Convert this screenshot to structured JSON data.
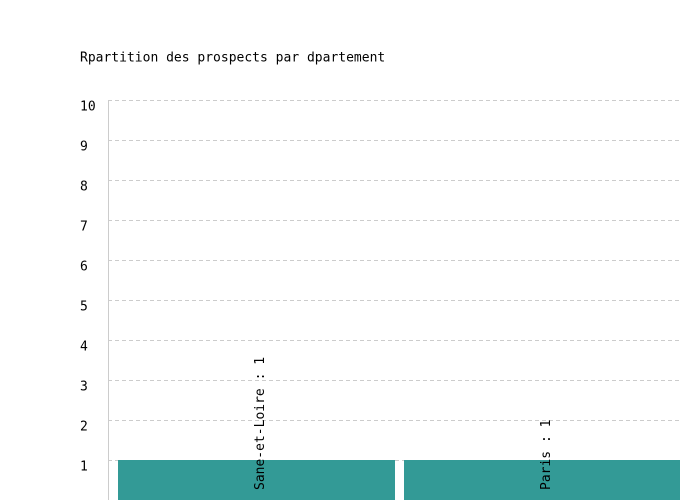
{
  "chart_data": {
    "type": "bar",
    "title": "Rpartition des prospects par dpartement",
    "values": [
      1,
      1
    ],
    "value_labels": [
      "Sane-et-Loire : 1",
      "Paris : 1"
    ],
    "color": "#339a96",
    "ylim": [
      0,
      10
    ],
    "yticks": [
      1,
      2,
      3,
      4,
      5,
      6,
      7,
      8,
      9,
      10
    ],
    "grid": true
  }
}
